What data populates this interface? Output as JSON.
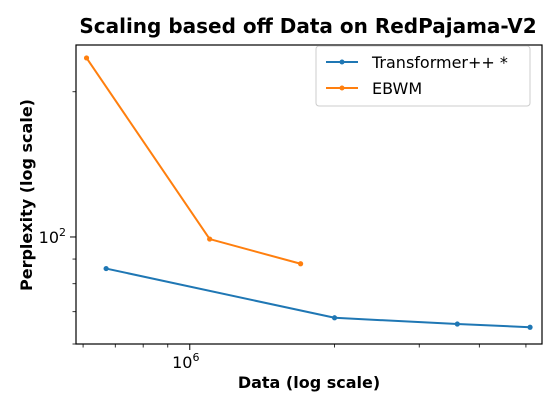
{
  "chart_data": {
    "type": "line",
    "title": "Scaling based off Data on RedPajama-V2",
    "xlabel": "Data (log scale)",
    "ylabel": "Perplexity (log scale)",
    "x_scale": "log",
    "y_scale": "log",
    "xlim": [
      580000,
      5400000
    ],
    "ylim": [
      60,
      250
    ],
    "x_tick_labels": [
      {
        "value": 1000000,
        "label": "10",
        "exp": "6"
      }
    ],
    "y_tick_labels": [
      {
        "value": 100,
        "label": "10",
        "exp": "2"
      }
    ],
    "legend_position": "top-right",
    "grid": false,
    "series": [
      {
        "name": "Transformer++ *",
        "color": "#1f77b4",
        "x": [
          670000,
          2000000,
          3600000,
          5100000
        ],
        "y": [
          86,
          68,
          66,
          65
        ]
      },
      {
        "name": "EBWM",
        "color": "#ff7f0e",
        "x": [
          610000,
          1100000,
          1700000
        ],
        "y": [
          235,
          99,
          88
        ]
      }
    ]
  }
}
